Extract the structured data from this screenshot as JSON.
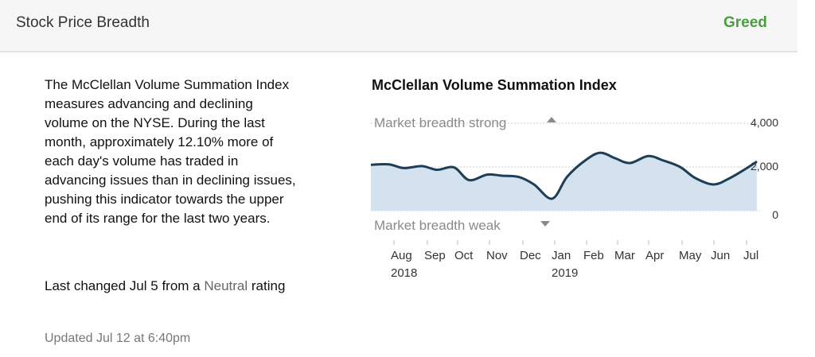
{
  "header": {
    "title": "Stock Price Breadth",
    "rating": "Greed",
    "rating_color": "#4a9e3f"
  },
  "description": "The McClellan Volume Summation Index measures advancing and declining volume on the NYSE. During the last month, approximately 12.10% more of each day's volume has traded in advancing issues than in declining issues, pushing this indicator towards the upper end of its range for the last two years.",
  "last_changed": {
    "prefix": "Last changed Jul 5 from a ",
    "previous_rating": "Neutral",
    "suffix": " rating"
  },
  "updated": "Updated Jul 12 at 6:40pm",
  "chart_data": {
    "type": "area",
    "title": "McClellan Volume Summation Index",
    "annotations": {
      "strong": "Market breadth strong",
      "weak": "Market breadth weak"
    },
    "ylim": [
      0,
      4000
    ],
    "yticks": [
      {
        "value": 4000,
        "label": "4,000"
      },
      {
        "value": 2000,
        "label": "2,000"
      },
      {
        "value": 0,
        "label": "0"
      }
    ],
    "xtick_labels": [
      {
        "month": "Aug",
        "year": "2018"
      },
      {
        "month": "Sep",
        "year": ""
      },
      {
        "month": "Oct",
        "year": ""
      },
      {
        "month": "Nov",
        "year": ""
      },
      {
        "month": "Dec",
        "year": ""
      },
      {
        "month": "Jan",
        "year": "2019"
      },
      {
        "month": "Feb",
        "year": ""
      },
      {
        "month": "Mar",
        "year": ""
      },
      {
        "month": "Apr",
        "year": ""
      },
      {
        "month": "May",
        "year": ""
      },
      {
        "month": "Jun",
        "year": ""
      },
      {
        "month": "Jul",
        "year": ""
      }
    ],
    "x": [
      "Jul 15 2018",
      "Aug 1 2018",
      "Aug 15 2018",
      "Sep 1 2018",
      "Sep 15 2018",
      "Oct 1 2018",
      "Oct 15 2018",
      "Nov 1 2018",
      "Nov 15 2018",
      "Dec 1 2018",
      "Dec 15 2018",
      "Jan 1 2019",
      "Jan 15 2019",
      "Feb 1 2019",
      "Feb 15 2019",
      "Mar 1 2019",
      "Mar 15 2019",
      "Apr 1 2019",
      "Apr 15 2019",
      "May 1 2019",
      "May 15 2019",
      "Jun 1 2019",
      "Jun 15 2019",
      "Jul 1 2019",
      "Jul 12 2019"
    ],
    "y": [
      2100,
      2120,
      1950,
      2040,
      1870,
      1980,
      1400,
      1650,
      1600,
      1540,
      1200,
      550,
      1550,
      2300,
      2650,
      2400,
      2180,
      2500,
      2300,
      2000,
      1500,
      1200,
      1450,
      1900,
      2250
    ],
    "fill_color": "#d4e1ee",
    "line_color": "#1c3f57"
  }
}
